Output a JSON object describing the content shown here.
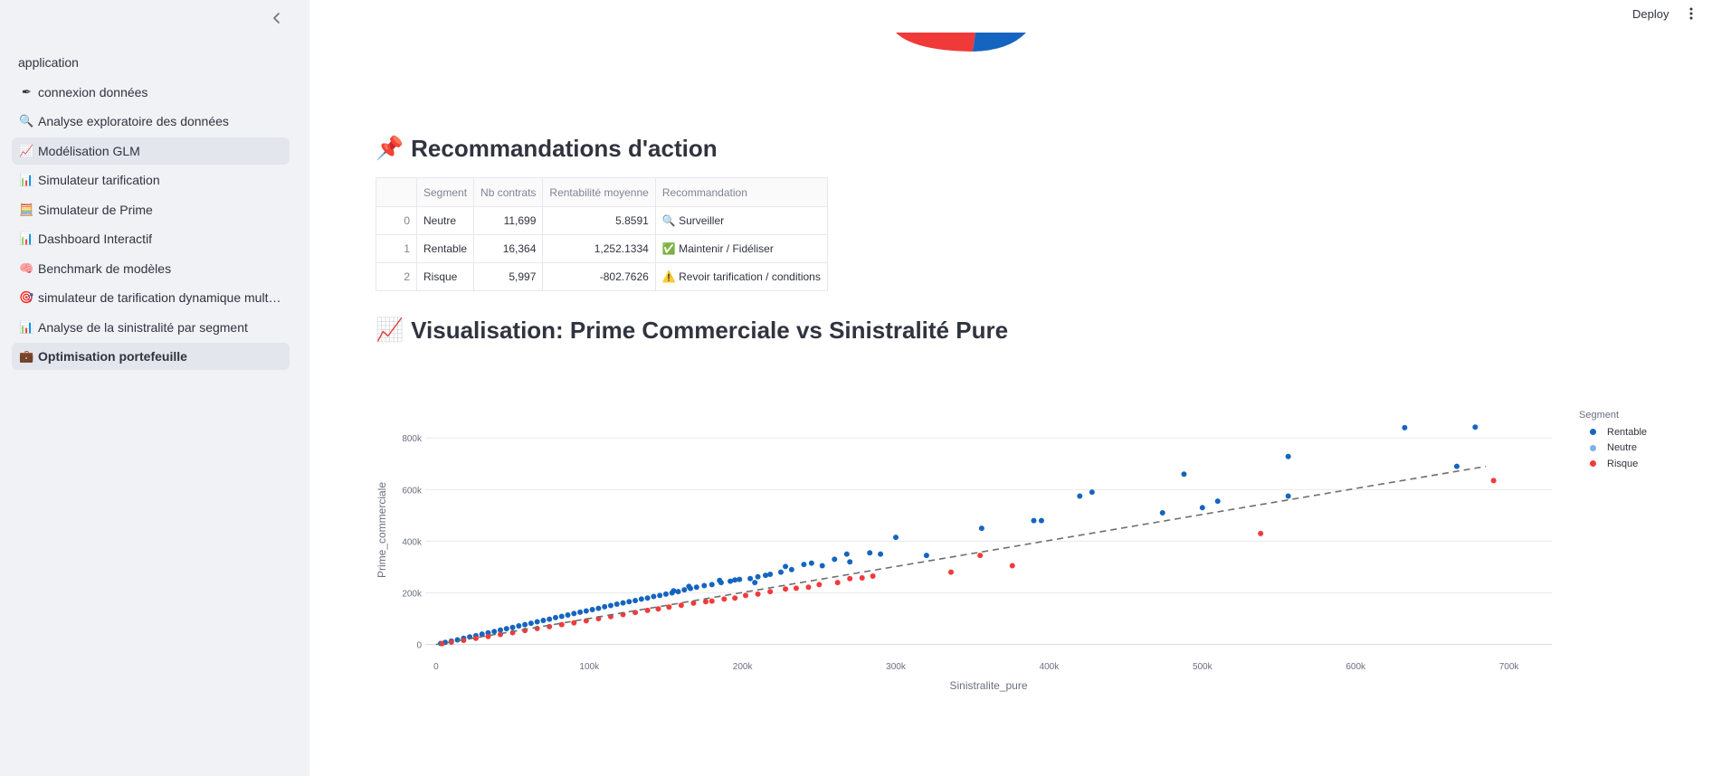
{
  "sidebar": {
    "items": [
      {
        "icon": "",
        "label": "application"
      },
      {
        "icon": "✒",
        "label": "connexion données"
      },
      {
        "icon": "🔍",
        "label": "Analyse exploratoire des données"
      },
      {
        "icon": "📈",
        "label": "Modélisation GLM"
      },
      {
        "icon": "📊",
        "label": "Simulateur tarification"
      },
      {
        "icon": "🧮",
        "label": "Simulateur de Prime"
      },
      {
        "icon": "📊",
        "label": "Dashboard Interactif"
      },
      {
        "icon": "🧠",
        "label": "Benchmark de modèles"
      },
      {
        "icon": "🎯",
        "label": "simulateur de tarification dynamique multi…"
      },
      {
        "icon": "📊",
        "label": "Analyse de la sinistralité par segment"
      },
      {
        "icon": "💼",
        "label": "Optimisation portefeuille"
      }
    ]
  },
  "topbar": {
    "deploy_label": "Deploy"
  },
  "recommendations": {
    "icon": "📌",
    "title": "Recommandations d'action",
    "columns": [
      "",
      "Segment",
      "Nb contrats",
      "Rentabilité moyenne",
      "Recommandation"
    ],
    "rows": [
      {
        "index": "0",
        "segment": "Neutre",
        "nb": "11,699",
        "rent": "5.8591",
        "icon": "🔍",
        "reco": "Surveiller"
      },
      {
        "index": "1",
        "segment": "Rentable",
        "nb": "16,364",
        "rent": "1,252.1334",
        "icon": "✅",
        "reco": "Maintenir / Fidéliser"
      },
      {
        "index": "2",
        "segment": "Risque",
        "nb": "5,997",
        "rent": "-802.7626",
        "icon": "⚠️",
        "reco": "Revoir tarification / conditions"
      }
    ]
  },
  "visualisation": {
    "icon": "📈",
    "title": "Visualisation: Prime Commerciale vs Sinistralité Pure"
  },
  "colors": {
    "rentable": "#1565c0",
    "neutre": "#7fb2e6",
    "risque": "#f23a3a",
    "pie_red": "#f03a3a",
    "pie_blue": "#1565c0"
  },
  "chart_data": {
    "type": "scatter",
    "xlabel": "Sinistralite_pure",
    "ylabel": "Prime_commerciale",
    "xlim": [
      -7000,
      728000
    ],
    "ylim": [
      -33000,
      920000
    ],
    "x_ticks": [
      0,
      100000,
      200000,
      300000,
      400000,
      500000,
      600000,
      700000
    ],
    "x_tick_labels": [
      "0",
      "100k",
      "200k",
      "300k",
      "400k",
      "500k",
      "600k",
      "700k"
    ],
    "y_ticks": [
      0,
      200000,
      400000,
      600000,
      800000
    ],
    "y_tick_labels": [
      "0",
      "200k",
      "400k",
      "600k",
      "800k"
    ],
    "legend_title": "Segment",
    "legend_position": "right",
    "grid": true,
    "trendline": {
      "style": "dashed",
      "x": [
        0,
        685000
      ],
      "y": [
        0,
        690000
      ]
    },
    "series": [
      {
        "name": "Rentable",
        "color": "#1565c0",
        "points": [
          [
            632000,
            840000
          ],
          [
            678000,
            842000
          ],
          [
            556000,
            728000
          ],
          [
            666000,
            690000
          ],
          [
            488000,
            660000
          ],
          [
            428000,
            590000
          ],
          [
            420000,
            575000
          ],
          [
            556000,
            575000
          ],
          [
            510000,
            555000
          ],
          [
            500000,
            530000
          ],
          [
            474000,
            510000
          ],
          [
            390000,
            480000
          ],
          [
            395000,
            480000
          ],
          [
            356000,
            450000
          ],
          [
            300000,
            415000
          ],
          [
            320000,
            345000
          ],
          [
            283000,
            355000
          ],
          [
            268000,
            350000
          ],
          [
            260000,
            330000
          ],
          [
            245000,
            315000
          ],
          [
            240000,
            310000
          ],
          [
            232000,
            290000
          ],
          [
            225000,
            280000
          ],
          [
            218000,
            272000
          ],
          [
            210000,
            262000
          ],
          [
            205000,
            255000
          ],
          [
            198000,
            252000
          ],
          [
            192000,
            245000
          ],
          [
            186000,
            240000
          ],
          [
            180000,
            232000
          ],
          [
            175000,
            228000
          ],
          [
            170000,
            222000
          ],
          [
            166000,
            217000
          ],
          [
            162000,
            212000
          ],
          [
            158000,
            205000
          ],
          [
            154000,
            200000
          ],
          [
            150000,
            195000
          ],
          [
            146000,
            190000
          ],
          [
            142000,
            186000
          ],
          [
            138000,
            180000
          ],
          [
            134000,
            176000
          ],
          [
            130000,
            170000
          ],
          [
            126000,
            166000
          ],
          [
            122000,
            161000
          ],
          [
            118000,
            156000
          ],
          [
            114000,
            151000
          ],
          [
            110000,
            146000
          ],
          [
            106000,
            140000
          ],
          [
            102000,
            135000
          ],
          [
            98000,
            130000
          ],
          [
            94000,
            125000
          ],
          [
            90000,
            120000
          ],
          [
            86000,
            114000
          ],
          [
            82000,
            109000
          ],
          [
            78000,
            104000
          ],
          [
            74000,
            98000
          ],
          [
            70000,
            93000
          ],
          [
            66000,
            88000
          ],
          [
            62000,
            82000
          ],
          [
            58000,
            77000
          ],
          [
            54000,
            72000
          ],
          [
            50000,
            66000
          ],
          [
            46000,
            61000
          ],
          [
            42000,
            56000
          ],
          [
            38000,
            50000
          ],
          [
            34000,
            45000
          ],
          [
            30000,
            40000
          ],
          [
            26000,
            34000
          ],
          [
            22000,
            29000
          ],
          [
            18000,
            24000
          ],
          [
            14000,
            18000
          ],
          [
            10000,
            13000
          ],
          [
            6000,
            8000
          ],
          [
            3000,
            4000
          ],
          [
            155000,
            208000
          ],
          [
            165000,
            225000
          ],
          [
            185000,
            248000
          ],
          [
            195000,
            250000
          ],
          [
            215000,
            268000
          ],
          [
            228000,
            302000
          ],
          [
            252000,
            305000
          ],
          [
            270000,
            320000
          ],
          [
            290000,
            350000
          ],
          [
            208000,
            240000
          ]
        ]
      },
      {
        "name": "Neutre",
        "color": "#7fb2e6",
        "points": []
      },
      {
        "name": "Risque",
        "color": "#f23a3a",
        "points": [
          [
            690000,
            635000
          ],
          [
            538000,
            430000
          ],
          [
            376000,
            305000
          ],
          [
            355000,
            345000
          ],
          [
            336000,
            280000
          ],
          [
            285000,
            265000
          ],
          [
            278000,
            258000
          ],
          [
            262000,
            240000
          ],
          [
            243000,
            222000
          ],
          [
            228000,
            215000
          ],
          [
            218000,
            205000
          ],
          [
            202000,
            190000
          ],
          [
            195000,
            180000
          ],
          [
            188000,
            176000
          ],
          [
            176000,
            166000
          ],
          [
            168000,
            160000
          ],
          [
            160000,
            152000
          ],
          [
            152000,
            145000
          ],
          [
            145000,
            138000
          ],
          [
            138000,
            132000
          ],
          [
            130000,
            124000
          ],
          [
            122000,
            116000
          ],
          [
            114000,
            108000
          ],
          [
            106000,
            100000
          ],
          [
            98000,
            92000
          ],
          [
            90000,
            84000
          ],
          [
            82000,
            77000
          ],
          [
            74000,
            69000
          ],
          [
            66000,
            62000
          ],
          [
            58000,
            54000
          ],
          [
            50000,
            46000
          ],
          [
            42000,
            39000
          ],
          [
            34000,
            31000
          ],
          [
            26000,
            24000
          ],
          [
            18000,
            16000
          ],
          [
            10000,
            9000
          ],
          [
            4000,
            3500
          ],
          [
            180000,
            168000
          ],
          [
            210000,
            195000
          ],
          [
            235000,
            218000
          ],
          [
            250000,
            232000
          ],
          [
            270000,
            255000
          ]
        ]
      }
    ]
  },
  "pie_data": {
    "type": "pie",
    "visible": "partial",
    "slices": [
      {
        "color": "#f03a3a"
      },
      {
        "color": "#1565c0"
      }
    ]
  }
}
